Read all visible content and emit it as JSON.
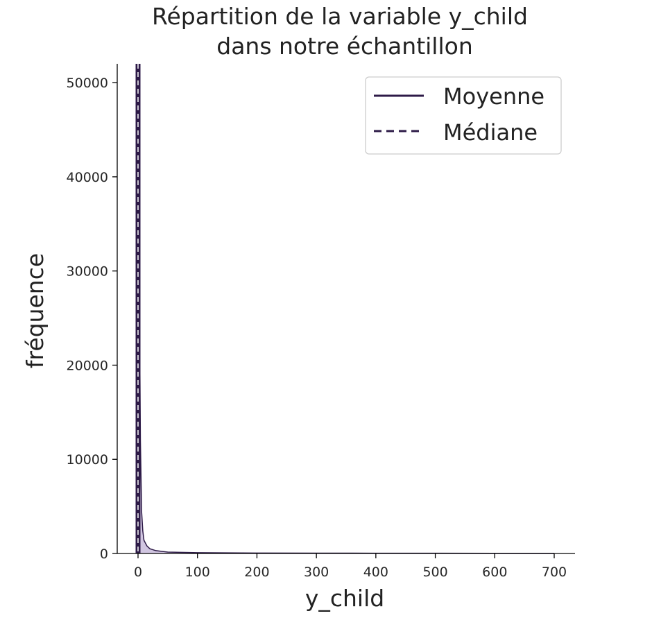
{
  "chart_data": {
    "type": "area",
    "title_lines": [
      "Répartition de la variable y_child",
      "dans notre échantillon"
    ],
    "xlabel": "y_child",
    "ylabel": "fréquence",
    "xlim": [
      -35,
      735
    ],
    "ylim": [
      0,
      52000
    ],
    "x_ticks": [
      "0",
      "100",
      "200",
      "300",
      "400",
      "500",
      "600",
      "700"
    ],
    "y_ticks": [
      "0",
      "10000",
      "20000",
      "30000",
      "40000",
      "50000"
    ],
    "grid": false,
    "legend_position": "top-right",
    "legend": [
      {
        "label": "Moyenne",
        "style": "solid"
      },
      {
        "label": "Médiane",
        "style": "dashed"
      }
    ],
    "series": [
      {
        "x": [
          0,
          2,
          4,
          6,
          8,
          10,
          15,
          20,
          30,
          50,
          100,
          200,
          300,
          400,
          500,
          600,
          700
        ],
        "y": [
          52000,
          30000,
          12000,
          4500,
          2400,
          1400,
          800,
          500,
          300,
          150,
          80,
          50,
          40,
          30,
          25,
          20,
          15
        ]
      }
    ],
    "mean_x": 0,
    "median_x": 0,
    "colors": {
      "fill": "#c9bcdc",
      "stroke": "#2d1a47",
      "mean_line": "#2d1a47",
      "median_line": "#ffffff"
    }
  }
}
